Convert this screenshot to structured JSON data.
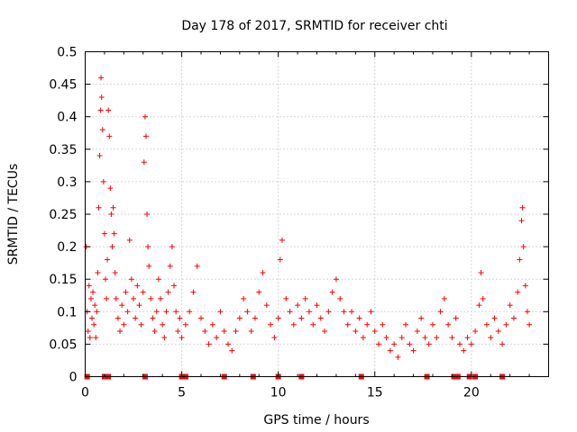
{
  "chart_data": {
    "type": "scatter",
    "title": "Day 178 of 2017, SRMTID for receiver chti",
    "xlabel": "GPS time / hours",
    "ylabel": "SRMTID / TECUs",
    "xlim": [
      0,
      24
    ],
    "ylim": [
      0,
      0.5
    ],
    "grid": true,
    "legend": "none",
    "marker": "+",
    "color": "#ff0000",
    "x_ticks": [
      "0",
      "5",
      "10",
      "15",
      "20"
    ],
    "y_ticks": [
      "0",
      "0.05",
      "0.1",
      "0.15",
      "0.2",
      "0.25",
      "0.3",
      "0.35",
      "0.4",
      "0.45",
      "0.5"
    ],
    "series": [
      {
        "name": "SRMTID",
        "points": [
          [
            0.05,
            0.2
          ],
          [
            0.1,
            0.1
          ],
          [
            0.15,
            0.07
          ],
          [
            0.2,
            0.14
          ],
          [
            0.25,
            0.06
          ],
          [
            0.3,
            0.12
          ],
          [
            0.35,
            0.09
          ],
          [
            0.4,
            0.13
          ],
          [
            0.45,
            0.08
          ],
          [
            0.5,
            0.11
          ],
          [
            0.55,
            0.06
          ],
          [
            0.6,
            0.1
          ],
          [
            0.65,
            0.16
          ],
          [
            0.7,
            0.26
          ],
          [
            0.75,
            0.34
          ],
          [
            0.8,
            0.41
          ],
          [
            0.82,
            0.46
          ],
          [
            0.85,
            0.43
          ],
          [
            0.9,
            0.38
          ],
          [
            0.95,
            0.3
          ],
          [
            1.0,
            0.22
          ],
          [
            1.05,
            0.15
          ],
          [
            1.1,
            0.12
          ],
          [
            1.15,
            0.18
          ],
          [
            1.2,
            0.41
          ],
          [
            1.25,
            0.37
          ],
          [
            1.3,
            0.29
          ],
          [
            1.35,
            0.25
          ],
          [
            1.4,
            0.2
          ],
          [
            1.45,
            0.26
          ],
          [
            1.5,
            0.22
          ],
          [
            1.55,
            0.16
          ],
          [
            1.6,
            0.12
          ],
          [
            1.7,
            0.09
          ],
          [
            1.8,
            0.07
          ],
          [
            1.9,
            0.11
          ],
          [
            2.0,
            0.08
          ],
          [
            2.1,
            0.13
          ],
          [
            2.2,
            0.1
          ],
          [
            2.3,
            0.21
          ],
          [
            2.4,
            0.15
          ],
          [
            2.5,
            0.12
          ],
          [
            2.6,
            0.09
          ],
          [
            2.7,
            0.14
          ],
          [
            2.8,
            0.11
          ],
          [
            2.9,
            0.08
          ],
          [
            3.0,
            0.13
          ],
          [
            3.05,
            0.33
          ],
          [
            3.1,
            0.4
          ],
          [
            3.15,
            0.37
          ],
          [
            3.2,
            0.25
          ],
          [
            3.25,
            0.2
          ],
          [
            3.3,
            0.17
          ],
          [
            3.4,
            0.12
          ],
          [
            3.5,
            0.09
          ],
          [
            3.6,
            0.07
          ],
          [
            3.7,
            0.1
          ],
          [
            3.8,
            0.15
          ],
          [
            3.9,
            0.12
          ],
          [
            4.0,
            0.08
          ],
          [
            4.1,
            0.06
          ],
          [
            4.2,
            0.1
          ],
          [
            4.3,
            0.13
          ],
          [
            4.4,
            0.17
          ],
          [
            4.5,
            0.2
          ],
          [
            4.6,
            0.14
          ],
          [
            4.7,
            0.1
          ],
          [
            4.8,
            0.07
          ],
          [
            4.9,
            0.09
          ],
          [
            5.0,
            0.06
          ],
          [
            5.2,
            0.08
          ],
          [
            5.4,
            0.1
          ],
          [
            5.6,
            0.13
          ],
          [
            5.8,
            0.17
          ],
          [
            6.0,
            0.09
          ],
          [
            6.2,
            0.07
          ],
          [
            6.4,
            0.05
          ],
          [
            6.6,
            0.08
          ],
          [
            6.8,
            0.06
          ],
          [
            7.0,
            0.1
          ],
          [
            7.2,
            0.07
          ],
          [
            7.4,
            0.05
          ],
          [
            7.6,
            0.04
          ],
          [
            7.8,
            0.07
          ],
          [
            8.0,
            0.09
          ],
          [
            8.2,
            0.12
          ],
          [
            8.4,
            0.1
          ],
          [
            8.6,
            0.07
          ],
          [
            8.8,
            0.09
          ],
          [
            9.0,
            0.13
          ],
          [
            9.2,
            0.16
          ],
          [
            9.4,
            0.11
          ],
          [
            9.6,
            0.08
          ],
          [
            9.8,
            0.06
          ],
          [
            10.0,
            0.09
          ],
          [
            10.1,
            0.18
          ],
          [
            10.2,
            0.21
          ],
          [
            10.4,
            0.12
          ],
          [
            10.6,
            0.1
          ],
          [
            10.8,
            0.08
          ],
          [
            11.0,
            0.11
          ],
          [
            11.2,
            0.09
          ],
          [
            11.4,
            0.12
          ],
          [
            11.6,
            0.1
          ],
          [
            11.8,
            0.08
          ],
          [
            12.0,
            0.11
          ],
          [
            12.2,
            0.09
          ],
          [
            12.4,
            0.07
          ],
          [
            12.6,
            0.1
          ],
          [
            12.8,
            0.13
          ],
          [
            13.0,
            0.15
          ],
          [
            13.2,
            0.12
          ],
          [
            13.4,
            0.1
          ],
          [
            13.6,
            0.08
          ],
          [
            13.8,
            0.1
          ],
          [
            14.0,
            0.07
          ],
          [
            14.2,
            0.09
          ],
          [
            14.4,
            0.06
          ],
          [
            14.6,
            0.08
          ],
          [
            14.8,
            0.1
          ],
          [
            15.0,
            0.07
          ],
          [
            15.2,
            0.05
          ],
          [
            15.4,
            0.08
          ],
          [
            15.6,
            0.06
          ],
          [
            15.8,
            0.04
          ],
          [
            16.0,
            0.05
          ],
          [
            16.2,
            0.03
          ],
          [
            16.4,
            0.06
          ],
          [
            16.6,
            0.08
          ],
          [
            16.8,
            0.05
          ],
          [
            17.0,
            0.04
          ],
          [
            17.2,
            0.07
          ],
          [
            17.4,
            0.09
          ],
          [
            17.6,
            0.06
          ],
          [
            17.8,
            0.05
          ],
          [
            18.0,
            0.08
          ],
          [
            18.2,
            0.06
          ],
          [
            18.4,
            0.1
          ],
          [
            18.6,
            0.12
          ],
          [
            18.8,
            0.08
          ],
          [
            19.0,
            0.06
          ],
          [
            19.2,
            0.09
          ],
          [
            19.4,
            0.05
          ],
          [
            19.6,
            0.04
          ],
          [
            19.8,
            0.06
          ],
          [
            20.0,
            0.05
          ],
          [
            20.2,
            0.07
          ],
          [
            20.4,
            0.11
          ],
          [
            20.5,
            0.16
          ],
          [
            20.6,
            0.12
          ],
          [
            20.8,
            0.08
          ],
          [
            21.0,
            0.06
          ],
          [
            21.2,
            0.09
          ],
          [
            21.4,
            0.07
          ],
          [
            21.6,
            0.05
          ],
          [
            21.8,
            0.08
          ],
          [
            22.0,
            0.11
          ],
          [
            22.2,
            0.09
          ],
          [
            22.4,
            0.13
          ],
          [
            22.5,
            0.18
          ],
          [
            22.6,
            0.24
          ],
          [
            22.65,
            0.26
          ],
          [
            22.7,
            0.2
          ],
          [
            22.8,
            0.14
          ],
          [
            22.9,
            0.1
          ],
          [
            23.0,
            0.08
          ]
        ]
      }
    ],
    "zero_markers_x": [
      0.1,
      1.0,
      1.2,
      3.1,
      5.0,
      5.2,
      7.2,
      8.7,
      10.0,
      11.2,
      14.3,
      17.7,
      19.1,
      19.3,
      19.9,
      20.2,
      21.6
    ]
  }
}
